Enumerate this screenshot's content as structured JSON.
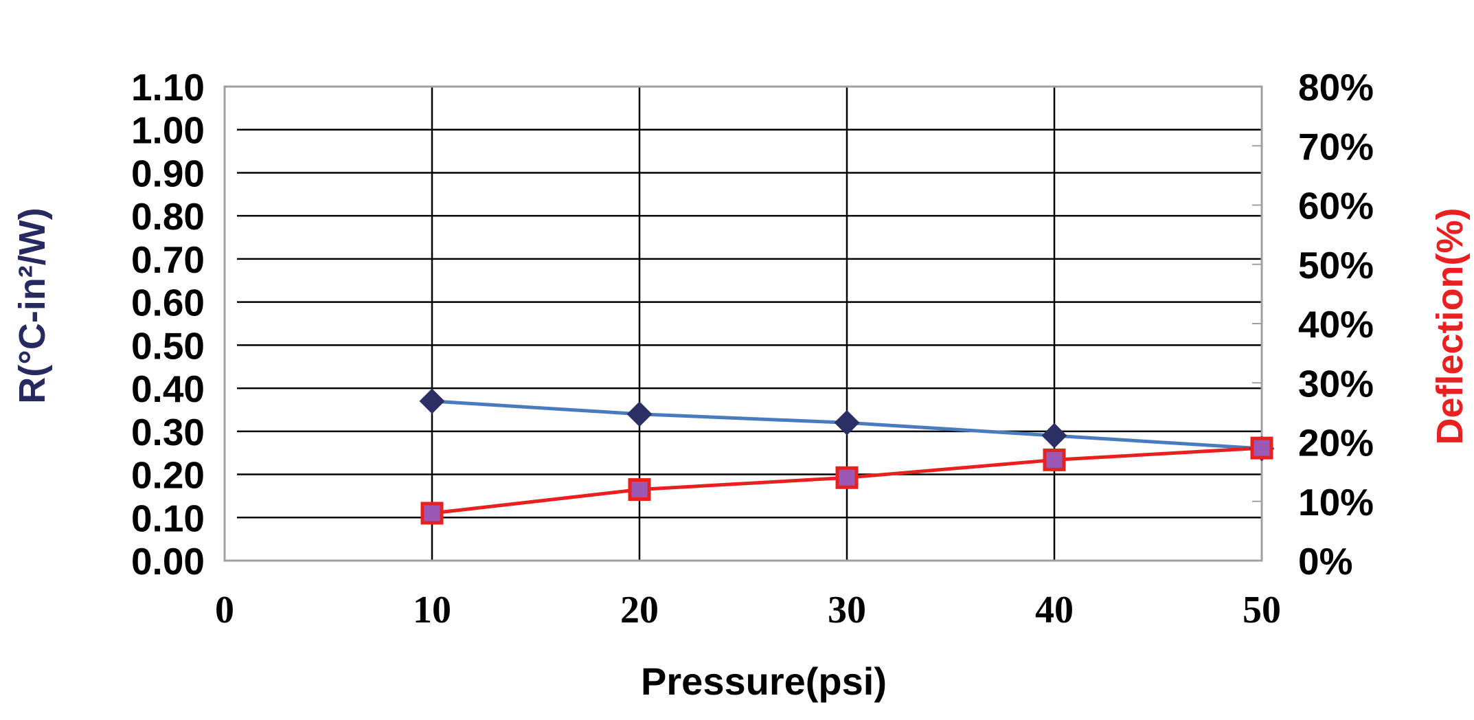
{
  "chart_data": {
    "type": "line",
    "title": "",
    "xlabel": "Pressure(psi)",
    "ylabel_left": "R(°C-in²/W)",
    "ylabel_right": "Deflection(%)",
    "xlim": [
      0,
      50
    ],
    "ylim_left": [
      0.0,
      1.1
    ],
    "ylim_right": [
      0,
      80
    ],
    "x_ticks": [
      "0",
      "10",
      "20",
      "30",
      "40",
      "50"
    ],
    "y_left_ticks": [
      "0.00",
      "0.10",
      "0.20",
      "0.30",
      "0.40",
      "0.50",
      "0.60",
      "0.70",
      "0.80",
      "0.90",
      "1.00",
      "1.10"
    ],
    "y_right_ticks": [
      "0%",
      "10%",
      "20%",
      "30%",
      "40%",
      "50%",
      "60%",
      "70%",
      "80%"
    ],
    "grid": true,
    "legend": "none",
    "series": [
      {
        "axis": "left",
        "marker": "diamond",
        "line_color": "#4a7bbf",
        "marker_color": "#2b2f63",
        "x": [
          10,
          20,
          30,
          40,
          50
        ],
        "values": [
          0.37,
          0.34,
          0.32,
          0.29,
          0.26
        ]
      },
      {
        "axis": "right",
        "marker": "square",
        "line_color": "#e8201f",
        "marker_color": "#9b59b6",
        "marker_edge": "#e8201f",
        "x": [
          10,
          20,
          30,
          40,
          50
        ],
        "values": [
          8,
          12,
          14,
          17,
          19
        ]
      }
    ],
    "colors": {
      "left_axis_label": "#262a5e",
      "right_axis_label": "#e8201f",
      "tick_text": "#000000",
      "grid": "#000000",
      "frame": "#a0a0a0"
    }
  }
}
